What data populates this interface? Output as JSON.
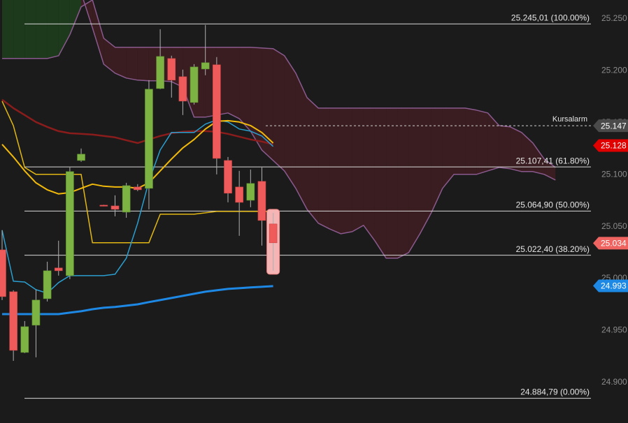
{
  "chart_data": {
    "type": "candlestick",
    "ylim": [
      24861,
      25268
    ],
    "yticks": [
      {
        "value": 24900,
        "label": "24.900"
      },
      {
        "value": 24950,
        "label": "24.950"
      },
      {
        "value": 25000,
        "label": "25.000"
      },
      {
        "value": 25050,
        "label": "25.050"
      },
      {
        "value": 25100,
        "label": "25.100"
      },
      {
        "value": 25150,
        "label": "25.150"
      },
      {
        "value": 25200,
        "label": "25.200"
      },
      {
        "value": 25250,
        "label": "25.250"
      }
    ],
    "up_color": "#7cb342",
    "down_color": "#ef5a5a",
    "open": [
      25027.6,
      24987.3,
      24928.9,
      24955.1,
      24980.6,
      25010.2,
      25002.8,
      25113.6,
      null,
      25070.6,
      25069.9,
      25063.9,
      25088.1,
      25086.8,
      25182.8,
      25211.7,
      25194.2,
      25169.4,
      25201.6,
      25205.7,
      25113.6,
      25088.1,
      25075.3,
      25093.5,
      25052.5
    ],
    "high": [
      25046.5,
      24988.7,
      24959.1,
      24989.3,
      25016.2,
      25036.4,
      25106.9,
      25125.1,
      null,
      25071.0,
      25080.0,
      25092.1,
      25090.8,
      25190.9,
      25239.9,
      25214.4,
      25201.0,
      25206.3,
      25244.0,
      25213.1,
      25117.0,
      25103.6,
      25104.9,
      25106.9,
      25063.2
    ],
    "low": [
      24979.3,
      24920.8,
      24928.2,
      24924.2,
      24977.9,
      25002.8,
      24999.4,
      25112.3,
      null,
      25069.5,
      25059.9,
      25058.5,
      25084.1,
      25066.6,
      25182.2,
      25174.1,
      25157.3,
      25167.4,
      25195.6,
      25100.2,
      25073.3,
      25041.1,
      25068.6,
      25031.7,
      25007.5
    ],
    "close": [
      24982.6,
      24930.9,
      24953.7,
      24979.3,
      25007.5,
      25007.5,
      25102.9,
      25119.7,
      null,
      25069.9,
      25066.6,
      25089.4,
      25085.4,
      25182.2,
      25213.7,
      25190.9,
      25170.7,
      25203.6,
      25207.7,
      25115.6,
      25082.1,
      25073.3,
      25091.5,
      25055.9,
      25034.4
    ],
    "cloud": {
      "color": "#8a5a8e",
      "bull_fill": "#1d3a1d",
      "bear_fill": "#3a1d20",
      "values_a": [
        25211.7,
        25211.7,
        25211.7,
        25211.7,
        25211.7,
        25214.4,
        25234.6,
        25261.4,
        25268.1,
        25231.2,
        25222.5,
        25222.5,
        25222.5,
        25222.5,
        25222.5,
        25222.5,
        25222.5,
        25222.5,
        25222.5,
        25222.5,
        25222.5,
        25222.5,
        25222.5,
        25221.8,
        25221.1,
        25214.4,
        25197.6,
        25174.1,
        25164.0,
        25164.0,
        25164.0,
        25164.0,
        25164.0,
        25164.0,
        25164.0,
        25164.0,
        25164.0,
        25164.0,
        25164.0,
        25164.0,
        25164.0,
        25164.0,
        25162.0,
        25159.3,
        25147.2,
        25145.9,
        25140.5,
        25130.4,
        25115.0,
        25106.9
      ],
      "values_b": [
        25275,
        25275,
        25275,
        25275,
        25275,
        25275,
        25275,
        25275,
        25241.3,
        25206.3,
        25197.6,
        25192.9,
        25190.9,
        25190.2,
        25190.2,
        25189.5,
        25184.2,
        25155.3,
        25155.3,
        25157.3,
        25159.3,
        25153.9,
        25141.8,
        25123.7,
        25113.6,
        25103.6,
        25086.8,
        25066.6,
        25053.2,
        25047.8,
        25043.1,
        25045.1,
        25051.2,
        25036.4,
        25019.6,
        25019.6,
        25025.0,
        25043.1,
        25063.2,
        25086.8,
        25100.2,
        25100.2,
        25100.2,
        25103.6,
        25106.9,
        25105.6,
        25102.9,
        25102.9,
        25100.2,
        25094.8
      ]
    },
    "series": [
      {
        "color": "#8a1c1c",
        "width": 2.5,
        "values": [
          25172.1,
          25164.0,
          25157.3,
          25150.6,
          25145.9,
          25141.8,
          25139.8,
          25139.2,
          25138.5,
          25137.2,
          25135.8,
          25133.1,
          25130.4,
          25133.8,
          25137.2,
          25139.8,
          25141.2,
          25141.8,
          25141.8,
          25141.2,
          25139.2,
          25136.5,
          25133.8,
          25131.8,
          25129.1
        ]
      },
      {
        "color": "#e2b714",
        "width": 1.5,
        "values": [
          25170.7,
          25147.2,
          25106.9,
          25100.2,
          25100.2,
          25100.2,
          25100.2,
          25100.2,
          25034.4,
          25034.4,
          25034.4,
          25034.4,
          25034.4,
          25034.4,
          25061.9,
          25061.9,
          25061.9,
          25061.9,
          25063.2,
          25064.6,
          25064.6,
          25064.6,
          25064.6,
          25064.6,
          25064.6
        ]
      },
      {
        "color": "#2a9fd0",
        "width": 1.5,
        "values": [
          25046.5,
          24997.4,
          24996.7,
          24989.3,
          24986.0,
          24996.1,
          25002.8,
          25002.8,
          25002.8,
          25002.8,
          25004.1,
          25019.6,
          25053.2,
          25093.5,
          25123.7,
          25140.5,
          25140.5,
          25140.5,
          25148.6,
          25152.6,
          25150.6,
          25143.9,
          25141.8,
          25137.2,
          25127.1
        ]
      },
      {
        "color": "#f0b90b",
        "width": 2,
        "values": [
          25129.1,
          25117.0,
          25103.6,
          25092.1,
          25085.4,
          25081.4,
          25082.7,
          25086.8,
          25090.8,
          25088.8,
          25088.1,
          25088.1,
          25086.8,
          25092.1,
          25103.6,
          25115.0,
          25125.7,
          25133.8,
          25143.9,
          25151.3,
          25151.9,
          25150.6,
          25147.2,
          25140.5,
          25130.4
        ]
      },
      {
        "color": "#1e88e5",
        "width": 3,
        "values": [
          24965.8,
          24965.8,
          24965.8,
          24965.8,
          24965.8,
          24965.8,
          24967.2,
          24968.5,
          24970.5,
          24971.9,
          24972.6,
          24973.9,
          24975.2,
          24977.3,
          24979.3,
          24981.3,
          24983.3,
          24985.3,
          24987.3,
          24988.7,
          24990.0,
          24990.7,
          24991.4,
          24992.0,
          24992.7
        ]
      }
    ],
    "fib_levels": [
      {
        "value": 25245.01,
        "label": "25.245,01 (100.00%)"
      },
      {
        "value": 25107.41,
        "label": "25.107,41 (61.80%)"
      },
      {
        "value": 25064.9,
        "label": "25.064,90 (50.00%)"
      },
      {
        "value": 25022.4,
        "label": "25.022,40 (38.20%)"
      },
      {
        "value": 24884.79,
        "label": "24.884,79 (0.00%)"
      }
    ],
    "alarm": {
      "text": "Kursalarm",
      "value": 25147,
      "label": "25.147",
      "color": "#4a4a4a"
    },
    "price_tags": [
      {
        "value": 25128,
        "label": "25.128",
        "color": "#e00000"
      },
      {
        "value": 25034,
        "label": "25.034",
        "color": "#ef6461"
      },
      {
        "value": 24993,
        "label": "24.993",
        "color": "#1e88e5"
      }
    ]
  }
}
